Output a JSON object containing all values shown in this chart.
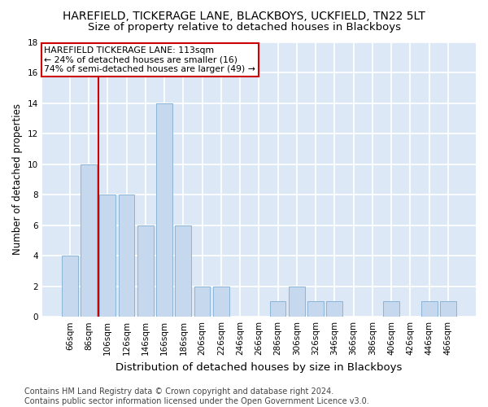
{
  "title": "HAREFIELD, TICKERAGE LANE, BLACKBOYS, UCKFIELD, TN22 5LT",
  "subtitle": "Size of property relative to detached houses in Blackboys",
  "xlabel": "Distribution of detached houses by size in Blackboys",
  "ylabel": "Number of detached properties",
  "categories": [
    "66sqm",
    "86sqm",
    "106sqm",
    "126sqm",
    "146sqm",
    "166sqm",
    "186sqm",
    "206sqm",
    "226sqm",
    "246sqm",
    "266sqm",
    "286sqm",
    "306sqm",
    "326sqm",
    "346sqm",
    "366sqm",
    "386sqm",
    "406sqm",
    "426sqm",
    "446sqm",
    "466sqm"
  ],
  "values": [
    4,
    10,
    8,
    8,
    6,
    14,
    6,
    2,
    2,
    0,
    0,
    1,
    2,
    1,
    1,
    0,
    0,
    1,
    0,
    1,
    1
  ],
  "bar_color": "#c5d8ee",
  "bar_edgecolor": "#8ab4d8",
  "ylim": [
    0,
    18
  ],
  "yticks": [
    0,
    2,
    4,
    6,
    8,
    10,
    12,
    14,
    16,
    18
  ],
  "vline_x": 1.5,
  "vline_color": "#cc0000",
  "annotation_text": "HAREFIELD TICKERAGE LANE: 113sqm\n← 24% of detached houses are smaller (16)\n74% of semi-detached houses are larger (49) →",
  "annotation_box_facecolor": "#ffffff",
  "annotation_box_edgecolor": "#cc0000",
  "footer": "Contains HM Land Registry data © Crown copyright and database right 2024.\nContains public sector information licensed under the Open Government Licence v3.0.",
  "bg_color": "#dce8f5",
  "grid_color": "#ffffff",
  "title_fontsize": 10,
  "subtitle_fontsize": 9.5,
  "tick_fontsize": 7.5,
  "ylabel_fontsize": 8.5,
  "xlabel_fontsize": 9.5,
  "annotation_fontsize": 7.8,
  "footer_fontsize": 7.0
}
